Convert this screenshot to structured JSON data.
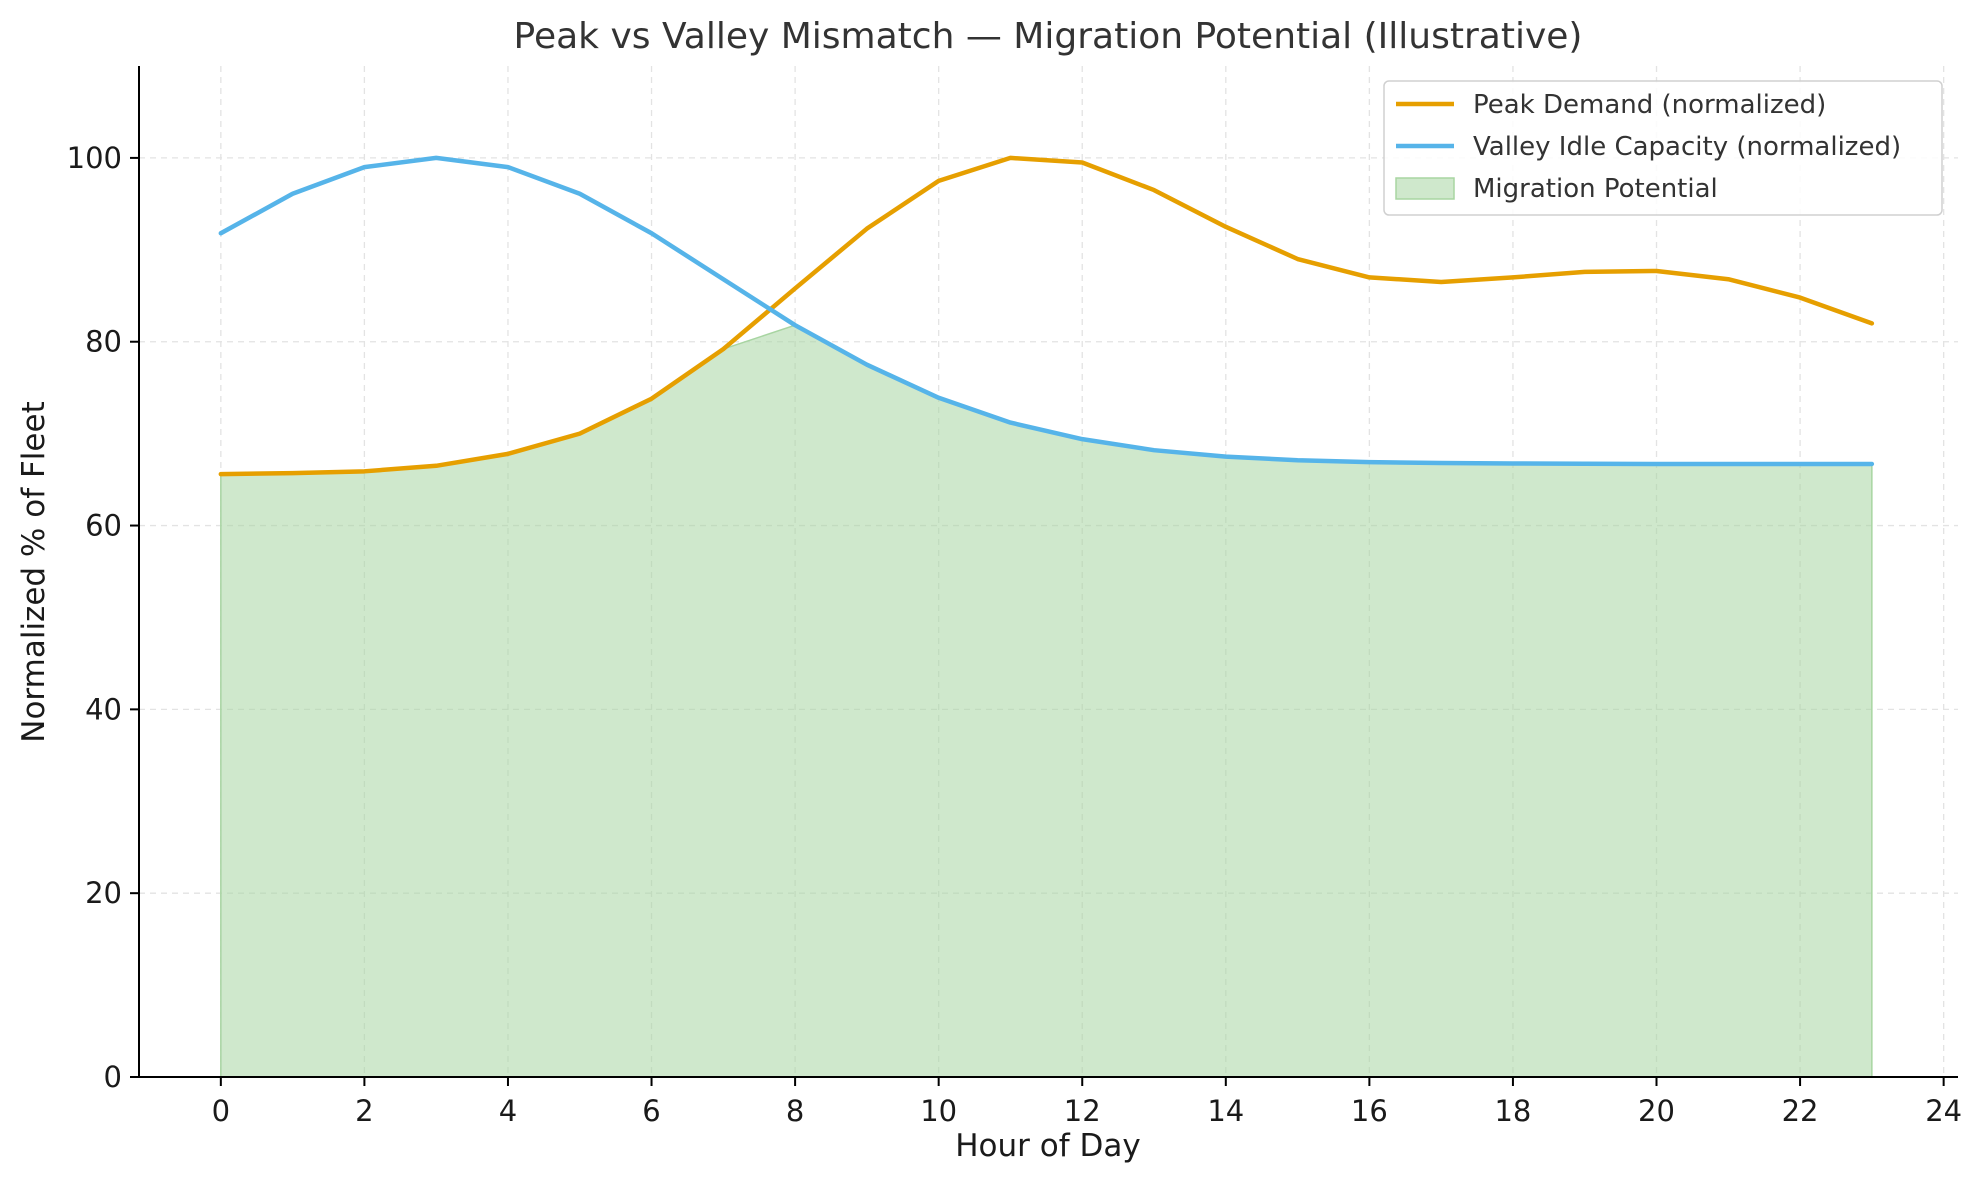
{
  "chart_data": {
    "type": "line",
    "title": "Peak vs Valley Mismatch — Migration Potential (Illustrative)",
    "xlabel": "Hour of Day",
    "ylabel": "Normalized % of Fleet",
    "xlim": [
      -1.14,
      24.2
    ],
    "ylim": [
      0,
      110
    ],
    "xticks": [
      0,
      2,
      4,
      6,
      8,
      10,
      12,
      14,
      16,
      18,
      20,
      22,
      24
    ],
    "yticks": [
      0,
      20,
      40,
      60,
      80,
      100
    ],
    "grid": true,
    "legend_position": "top-right",
    "x": [
      0,
      1,
      2,
      3,
      4,
      5,
      6,
      7,
      8,
      9,
      10,
      11,
      12,
      13,
      14,
      15,
      16,
      17,
      18,
      19,
      20,
      21,
      22,
      23
    ],
    "series": [
      {
        "name": "Peak Demand (normalized)",
        "color": "#E69F00",
        "values": [
          65.6,
          65.7,
          65.9,
          66.5,
          67.8,
          70.0,
          73.8,
          79.2,
          85.8,
          92.3,
          97.5,
          100.0,
          99.5,
          96.5,
          92.5,
          89.0,
          87.0,
          86.5,
          87.0,
          87.6,
          87.7,
          86.8,
          84.8,
          82.0
        ]
      },
      {
        "name": "Valley Idle Capacity (normalized)",
        "color": "#56B4E9",
        "values": [
          91.8,
          96.1,
          99.0,
          100.0,
          99.0,
          96.1,
          91.8,
          86.8,
          81.8,
          77.5,
          73.9,
          71.2,
          69.4,
          68.2,
          67.5,
          67.1,
          66.9,
          66.8,
          66.75,
          66.72,
          66.7,
          66.7,
          66.7,
          66.7
        ]
      }
    ],
    "area": {
      "name": "Migration Potential",
      "color": "#A8D5A2",
      "rule": "min of Peak Demand and Valley Idle Capacity"
    }
  }
}
